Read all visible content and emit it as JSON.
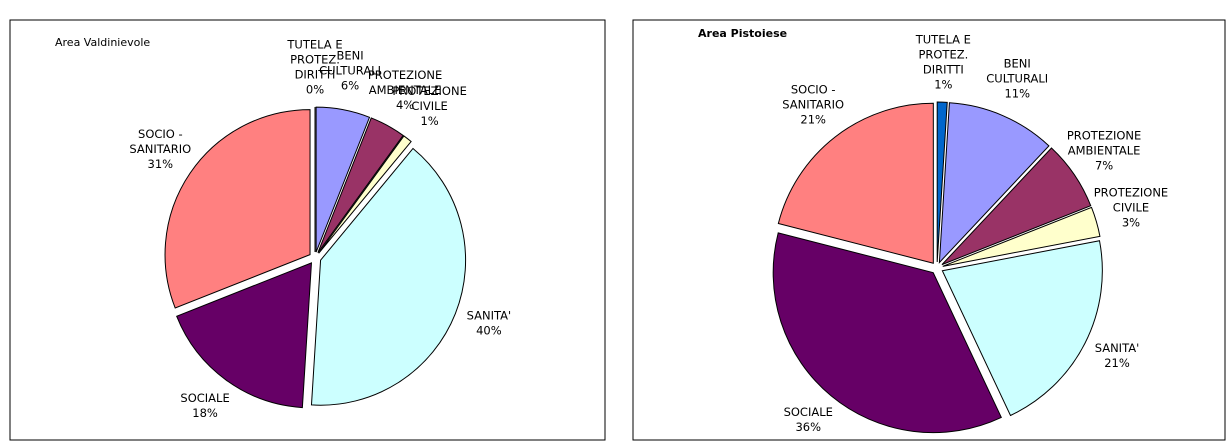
{
  "chart_data": [
    {
      "type": "pie",
      "title": "Area Valdinievole",
      "categories": [
        [
          "TUTELA E",
          "PROTEZ.",
          "DIRITTI"
        ],
        [
          "BENI",
          "CULTURALI"
        ],
        [
          "PROTEZIONE",
          "AMBIENTALE"
        ],
        [
          "PROTEZIONE",
          "CIVILE"
        ],
        [
          "SANITA'"
        ],
        [
          "SOCIALE"
        ],
        [
          "SOCIO -",
          "SANITARIO"
        ]
      ],
      "values": [
        0,
        6,
        4,
        1,
        40,
        18,
        31
      ],
      "value_labels": [
        "0%",
        "6%",
        "4%",
        "1%",
        "40%",
        "18%",
        "31%"
      ],
      "colors": [
        "#0066cc",
        "#9999ff",
        "#993366",
        "#ffffcc",
        "#ccffff",
        "#660066",
        "#ff8080"
      ]
    },
    {
      "type": "pie",
      "title": "Area Pistoiese",
      "categories": [
        [
          "TUTELA E",
          "PROTEZ.",
          "DIRITTI"
        ],
        [
          "BENI",
          "CULTURALI"
        ],
        [
          "PROTEZIONE",
          "AMBIENTALE"
        ],
        [
          "PROTEZIONE",
          "CIVILE"
        ],
        [
          "SANITA'"
        ],
        [
          "SOCIALE"
        ],
        [
          "SOCIO -",
          "SANITARIO"
        ]
      ],
      "values": [
        1,
        11,
        7,
        3,
        21,
        36,
        21
      ],
      "value_labels": [
        "1%",
        "11%",
        "7%",
        "3%",
        "21%",
        "36%",
        "21%"
      ],
      "colors": [
        "#0066cc",
        "#9999ff",
        "#993366",
        "#ffffcc",
        "#ccffff",
        "#660066",
        "#ff8080"
      ]
    }
  ]
}
